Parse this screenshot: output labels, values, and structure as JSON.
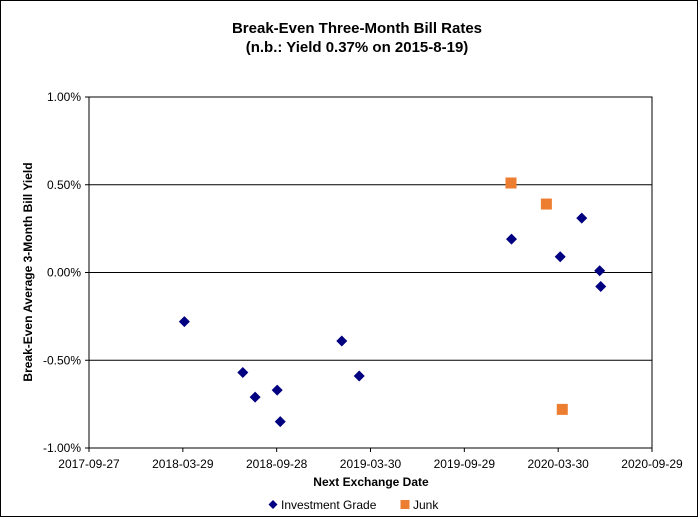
{
  "chart_data": {
    "type": "scatter",
    "title": "Break-Even Three-Month Bill Rates",
    "subtitle": "(n.b.: Yield 0.37% on 2015-8-19)",
    "xlabel": "Next Exchange Date",
    "ylabel": "Break-Even Average 3-Month Bill Yield",
    "x_ticks": [
      "2017-09-27",
      "2018-03-29",
      "2018-09-28",
      "2019-03-30",
      "2019-09-29",
      "2020-03-30",
      "2020-09-29"
    ],
    "y_ticks": [
      "1.00%",
      "0.50%",
      "0.00%",
      "-0.50%",
      "-1.00%"
    ],
    "xlim": [
      "2017-09-27",
      "2020-09-29"
    ],
    "ylim": [
      -1.0,
      1.0
    ],
    "grid": "horizontal",
    "legend_position": "bottom",
    "series": [
      {
        "name": "Investment Grade",
        "marker": "diamond",
        "color": "#000080",
        "points": [
          {
            "x": "2018-04-01",
            "y": -0.28
          },
          {
            "x": "2018-07-24",
            "y": -0.57
          },
          {
            "x": "2018-08-17",
            "y": -0.71
          },
          {
            "x": "2018-09-29",
            "y": -0.67
          },
          {
            "x": "2018-10-05",
            "y": -0.85
          },
          {
            "x": "2019-02-02",
            "y": -0.39
          },
          {
            "x": "2019-03-08",
            "y": -0.59
          },
          {
            "x": "2019-12-30",
            "y": 0.19
          },
          {
            "x": "2020-04-03",
            "y": 0.09
          },
          {
            "x": "2020-05-15",
            "y": 0.31
          },
          {
            "x": "2020-06-19",
            "y": 0.01
          },
          {
            "x": "2020-06-21",
            "y": -0.08
          }
        ]
      },
      {
        "name": "Junk",
        "marker": "square",
        "color": "#ED7D31",
        "points": [
          {
            "x": "2019-12-29",
            "y": 0.51
          },
          {
            "x": "2020-03-07",
            "y": 0.39
          },
          {
            "x": "2020-04-07",
            "y": -0.78
          }
        ]
      }
    ]
  }
}
